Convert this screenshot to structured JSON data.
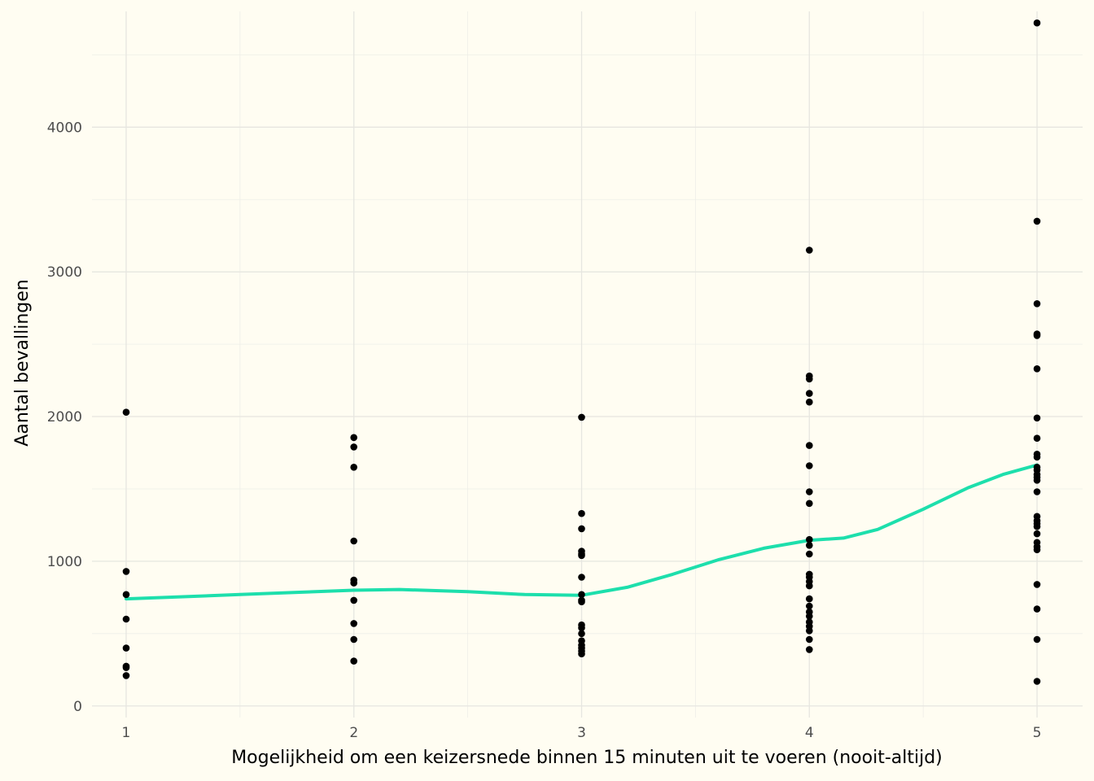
{
  "chart_data": {
    "type": "scatter",
    "xlabel": "Mogelijkheid om een keizersnede binnen 15 minuten uit te voeren (nooit-altijd)",
    "ylabel": "Aantal bevallingen",
    "xlim": [
      0.85,
      5.2
    ],
    "ylim": [
      -80,
      4800
    ],
    "x_ticks": [
      1,
      2,
      3,
      4,
      5
    ],
    "y_ticks": [
      0,
      1000,
      2000,
      3000,
      4000
    ],
    "grid": true,
    "colors": {
      "background": "#fffdf2",
      "points": "#000000",
      "smooth": "#1ddfac"
    },
    "series": [
      {
        "type": "scatter",
        "points": [
          [
            1,
            2030
          ],
          [
            1,
            930
          ],
          [
            1,
            770
          ],
          [
            1,
            600
          ],
          [
            1,
            400
          ],
          [
            1,
            275
          ],
          [
            1,
            265
          ],
          [
            1,
            210
          ],
          [
            2,
            1855
          ],
          [
            2,
            1790
          ],
          [
            2,
            1650
          ],
          [
            2,
            1140
          ],
          [
            2,
            870
          ],
          [
            2,
            850
          ],
          [
            2,
            730
          ],
          [
            2,
            570
          ],
          [
            2,
            460
          ],
          [
            2,
            310
          ],
          [
            3,
            1995
          ],
          [
            3,
            1330
          ],
          [
            3,
            1225
          ],
          [
            3,
            1070
          ],
          [
            3,
            1050
          ],
          [
            3,
            1040
          ],
          [
            3,
            890
          ],
          [
            3,
            770
          ],
          [
            3,
            730
          ],
          [
            3,
            720
          ],
          [
            3,
            560
          ],
          [
            3,
            540
          ],
          [
            3,
            500
          ],
          [
            3,
            450
          ],
          [
            3,
            420
          ],
          [
            3,
            400
          ],
          [
            3,
            380
          ],
          [
            3,
            360
          ],
          [
            4,
            3150
          ],
          [
            4,
            2280
          ],
          [
            4,
            2260
          ],
          [
            4,
            2160
          ],
          [
            4,
            2100
          ],
          [
            4,
            1800
          ],
          [
            4,
            1660
          ],
          [
            4,
            1480
          ],
          [
            4,
            1400
          ],
          [
            4,
            1150
          ],
          [
            4,
            1110
          ],
          [
            4,
            1050
          ],
          [
            4,
            910
          ],
          [
            4,
            890
          ],
          [
            4,
            860
          ],
          [
            4,
            830
          ],
          [
            4,
            740
          ],
          [
            4,
            690
          ],
          [
            4,
            650
          ],
          [
            4,
            620
          ],
          [
            4,
            580
          ],
          [
            4,
            550
          ],
          [
            4,
            520
          ],
          [
            4,
            460
          ],
          [
            4,
            390
          ],
          [
            5,
            4720
          ],
          [
            5,
            3350
          ],
          [
            5,
            2780
          ],
          [
            5,
            2570
          ],
          [
            5,
            2560
          ],
          [
            5,
            2330
          ],
          [
            5,
            1990
          ],
          [
            5,
            1850
          ],
          [
            5,
            1740
          ],
          [
            5,
            1720
          ],
          [
            5,
            1650
          ],
          [
            5,
            1630
          ],
          [
            5,
            1600
          ],
          [
            5,
            1580
          ],
          [
            5,
            1560
          ],
          [
            5,
            1480
          ],
          [
            5,
            1310
          ],
          [
            5,
            1280
          ],
          [
            5,
            1260
          ],
          [
            5,
            1240
          ],
          [
            5,
            1190
          ],
          [
            5,
            1130
          ],
          [
            5,
            1100
          ],
          [
            5,
            1080
          ],
          [
            5,
            840
          ],
          [
            5,
            670
          ],
          [
            5,
            460
          ],
          [
            5,
            170
          ]
        ]
      },
      {
        "type": "smooth",
        "points": [
          [
            1,
            740
          ],
          [
            1.25,
            755
          ],
          [
            1.5,
            770
          ],
          [
            1.75,
            785
          ],
          [
            2,
            800
          ],
          [
            2.2,
            805
          ],
          [
            2.5,
            790
          ],
          [
            2.75,
            770
          ],
          [
            3,
            765
          ],
          [
            3.2,
            820
          ],
          [
            3.4,
            910
          ],
          [
            3.6,
            1010
          ],
          [
            3.8,
            1090
          ],
          [
            4,
            1145
          ],
          [
            4.15,
            1160
          ],
          [
            4.3,
            1220
          ],
          [
            4.5,
            1360
          ],
          [
            4.7,
            1510
          ],
          [
            4.85,
            1600
          ],
          [
            5,
            1665
          ]
        ]
      }
    ]
  }
}
